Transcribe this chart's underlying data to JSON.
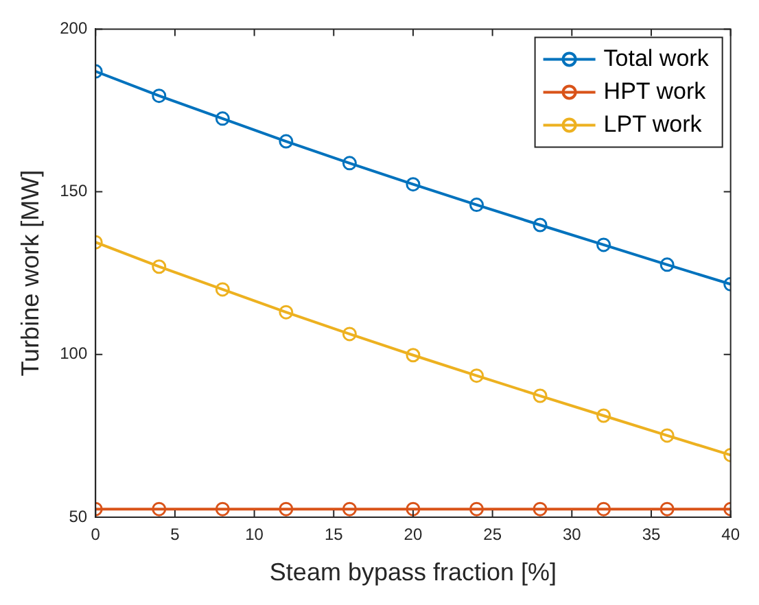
{
  "chart_data": {
    "type": "line",
    "xlabel": "Steam bypass fraction [%]",
    "ylabel": "Turbine work [MW]",
    "x": [
      0,
      4,
      8,
      12,
      16,
      20,
      24,
      28,
      32,
      36,
      40
    ],
    "series": [
      {
        "name": "Total work",
        "color": "#0072bd",
        "values": [
          187,
          179.5,
          172.5,
          165.5,
          158.8,
          152.3,
          146,
          139.8,
          133.7,
          127.6,
          121.6
        ]
      },
      {
        "name": "HPT work",
        "color": "#d95319",
        "values": [
          52.5,
          52.5,
          52.5,
          52.5,
          52.5,
          52.5,
          52.5,
          52.5,
          52.5,
          52.5,
          52.5
        ]
      },
      {
        "name": "LPT work",
        "color": "#edb120",
        "values": [
          134.5,
          127,
          120,
          113,
          106.3,
          99.8,
          93.5,
          87.3,
          81.2,
          75.1,
          69.1
        ]
      }
    ],
    "xlim": [
      0,
      40
    ],
    "xticks": [
      0,
      5,
      10,
      15,
      20,
      25,
      30,
      35,
      40
    ],
    "ylim": [
      50,
      200
    ],
    "yticks": [
      50,
      100,
      150,
      200
    ],
    "grid": false,
    "legend": "top right",
    "marker": "circle",
    "line_style": "solid"
  }
}
